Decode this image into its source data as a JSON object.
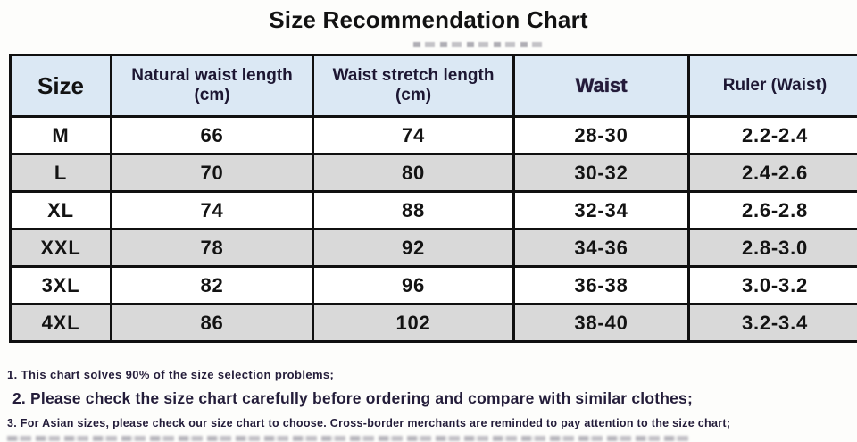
{
  "title": "Size Recommendation Chart",
  "table": {
    "columns": [
      "Size",
      "Natural waist length (cm)",
      "Waist stretch length (cm)",
      "Waist",
      "Ruler (Waist)"
    ],
    "rows": [
      [
        "M",
        "66",
        "74",
        "28-30",
        "2.2-2.4"
      ],
      [
        "L",
        "70",
        "80",
        "30-32",
        "2.4-2.6"
      ],
      [
        "XL",
        "74",
        "88",
        "32-34",
        "2.6-2.8"
      ],
      [
        "XXL",
        "78",
        "92",
        "34-36",
        "2.8-3.0"
      ],
      [
        "3XL",
        "82",
        "96",
        "36-38",
        "3.0-3.2"
      ],
      [
        "4XL",
        "86",
        "102",
        "38-40",
        "3.2-3.4"
      ]
    ]
  },
  "notes": [
    "1. This chart solves 90% of the size selection problems;",
    "2. Please check the size chart carefully before ordering and compare with similar clothes;",
    "3. For Asian sizes, please check our size chart to choose. Cross-border merchants are reminded to pay attention to the size chart;"
  ],
  "colors": {
    "header_bg": "#dbe8f4",
    "row_alt_bg": "#d9d9d9",
    "border": "#101010",
    "header_text": "#1d1733",
    "body_text": "#131313",
    "note_text": "#241d3a",
    "page_bg": "#fdfdfb"
  }
}
